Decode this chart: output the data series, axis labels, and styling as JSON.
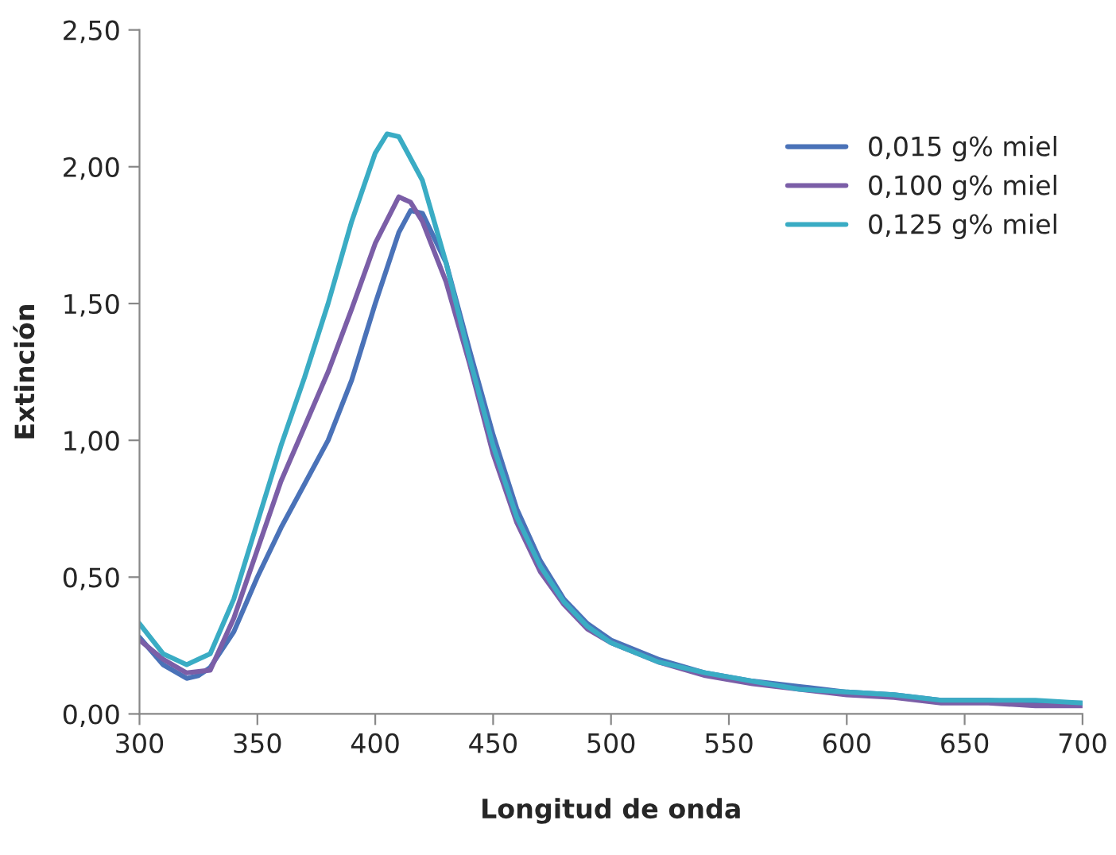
{
  "chart_data": {
    "type": "line",
    "xlabel": "Longitud de onda",
    "ylabel": "Extinción",
    "xlim": [
      300,
      700
    ],
    "xticks": [
      300,
      350,
      400,
      450,
      500,
      550,
      600,
      650,
      700
    ],
    "ylim": [
      0,
      2.5
    ],
    "yticks": [
      {
        "value": 0,
        "label": "0,00"
      },
      {
        "value": 0.5,
        "label": "0,50"
      },
      {
        "value": 1.0,
        "label": "1,00"
      },
      {
        "value": 1.5,
        "label": "1,50"
      },
      {
        "value": 2.0,
        "label": "2,00"
      },
      {
        "value": 2.5,
        "label": "2,50"
      }
    ],
    "grid": false,
    "legend": "top right",
    "marker": "none",
    "line_style": "solid",
    "series": [
      {
        "name": "0,015 g% miel",
        "color": "#4a72b8",
        "x": [
          300,
          310,
          320,
          325,
          330,
          340,
          350,
          360,
          370,
          380,
          390,
          400,
          410,
          415,
          420,
          430,
          440,
          450,
          460,
          470,
          480,
          490,
          500,
          520,
          540,
          560,
          580,
          600,
          620,
          640,
          660,
          680,
          700
        ],
        "values": [
          0.28,
          0.18,
          0.13,
          0.14,
          0.17,
          0.3,
          0.5,
          0.68,
          0.84,
          1.0,
          1.22,
          1.5,
          1.76,
          1.84,
          1.83,
          1.65,
          1.33,
          1.02,
          0.75,
          0.56,
          0.42,
          0.33,
          0.27,
          0.2,
          0.15,
          0.12,
          0.1,
          0.08,
          0.07,
          0.05,
          0.05,
          0.04,
          0.04
        ]
      },
      {
        "name": "0,100 g% miel",
        "color": "#7b5ea7",
        "x": [
          300,
          310,
          320,
          330,
          340,
          350,
          360,
          370,
          380,
          390,
          400,
          410,
          415,
          420,
          430,
          440,
          450,
          460,
          470,
          480,
          490,
          500,
          520,
          540,
          560,
          580,
          600,
          620,
          640,
          660,
          680,
          700
        ],
        "values": [
          0.27,
          0.2,
          0.15,
          0.16,
          0.35,
          0.6,
          0.85,
          1.05,
          1.25,
          1.48,
          1.72,
          1.89,
          1.87,
          1.8,
          1.58,
          1.28,
          0.95,
          0.7,
          0.52,
          0.4,
          0.31,
          0.26,
          0.19,
          0.14,
          0.11,
          0.09,
          0.07,
          0.06,
          0.04,
          0.04,
          0.03,
          0.03
        ]
      },
      {
        "name": "0,125 g% miel",
        "color": "#3aacc4",
        "x": [
          300,
          310,
          320,
          330,
          340,
          350,
          360,
          370,
          380,
          390,
          400,
          405,
          410,
          420,
          430,
          440,
          450,
          460,
          470,
          480,
          490,
          500,
          520,
          540,
          560,
          580,
          600,
          620,
          640,
          660,
          680,
          700
        ],
        "values": [
          0.33,
          0.22,
          0.18,
          0.22,
          0.42,
          0.7,
          0.98,
          1.23,
          1.5,
          1.8,
          2.05,
          2.12,
          2.11,
          1.95,
          1.65,
          1.3,
          0.98,
          0.72,
          0.54,
          0.41,
          0.32,
          0.26,
          0.19,
          0.15,
          0.12,
          0.09,
          0.08,
          0.07,
          0.05,
          0.05,
          0.05,
          0.04
        ]
      }
    ]
  }
}
